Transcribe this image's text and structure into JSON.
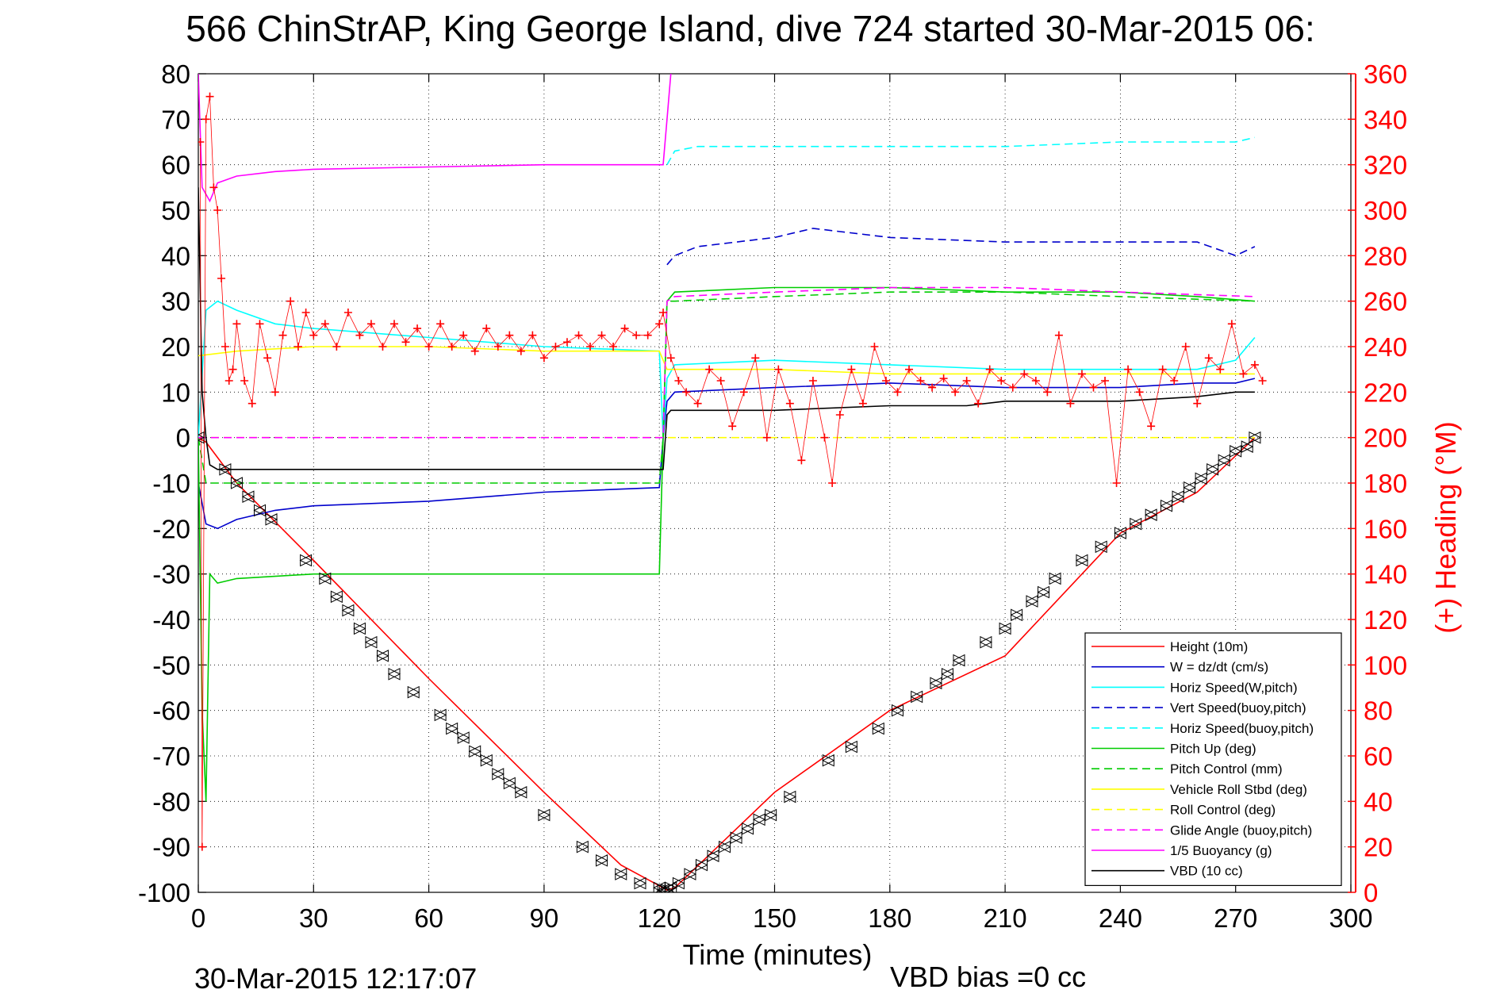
{
  "chart_data": {
    "type": "line",
    "title": "566 ChinStrAP, King George Island, dive 724 started 30-Mar-2015 06:",
    "xlabel": "Time (minutes)",
    "ylabel": "",
    "y2label": "(+) Heading (°M)",
    "xlim": [
      0,
      300
    ],
    "ylim": [
      -100,
      80
    ],
    "y2lim": [
      0,
      360
    ],
    "xticks": [
      0,
      30,
      60,
      90,
      120,
      150,
      180,
      210,
      240,
      270,
      300
    ],
    "yticks": [
      80,
      70,
      60,
      50,
      40,
      30,
      20,
      10,
      0,
      -10,
      -20,
      -30,
      -40,
      -50,
      -60,
      -70,
      -80,
      -90,
      -100
    ],
    "y2ticks": [
      360,
      340,
      320,
      300,
      280,
      260,
      240,
      220,
      200,
      180,
      160,
      140,
      120,
      100,
      80,
      60,
      40,
      20,
      0
    ],
    "grid": true,
    "legend_position": "lower-right",
    "footer_left": "30-Mar-2015 12:17:07",
    "footer_right": "VBD bias =0 cc",
    "colors": {
      "red": "#ff0000",
      "blue": "#0000cc",
      "cyan": "#00ffff",
      "green": "#00cc00",
      "yellow": "#ffff00",
      "magenta": "#ff00ff",
      "black": "#000000"
    },
    "series": [
      {
        "name": "Height (10m)",
        "color": "#ff0000",
        "dash": "solid",
        "x": [
          0,
          2,
          10,
          30,
          60,
          90,
          110,
          121,
          122,
          124,
          150,
          180,
          210,
          240,
          260,
          275
        ],
        "y": [
          0,
          -1,
          -10,
          -27,
          -53,
          -78,
          -94,
          -99,
          -99.5,
          -99,
          -78,
          -60,
          -48,
          -21,
          -12,
          0
        ]
      },
      {
        "name": "W = dz/dt (cm/s)",
        "color": "#0000cc",
        "dash": "solid",
        "x": [
          0,
          2,
          5,
          10,
          20,
          30,
          60,
          90,
          120,
          121,
          122,
          124,
          150,
          180,
          210,
          240,
          260,
          270,
          275
        ],
        "y": [
          -10,
          -19,
          -20,
          -18,
          -16,
          -15,
          -14,
          -12,
          -11,
          0,
          8,
          10,
          11,
          12,
          11,
          11,
          12,
          12,
          13
        ]
      },
      {
        "name": "Horiz Speed(W,pitch)",
        "color": "#00ffff",
        "dash": "solid",
        "x": [
          0,
          2,
          5,
          10,
          20,
          30,
          60,
          90,
          120,
          121,
          122,
          124,
          150,
          180,
          210,
          240,
          260,
          270,
          275
        ],
        "y": [
          0,
          28,
          30,
          28,
          25,
          24,
          22,
          20,
          19,
          0,
          13,
          16,
          17,
          16,
          15,
          15,
          15,
          17,
          22
        ]
      },
      {
        "name": "Vert Speed(buoy,pitch)",
        "color": "#0000cc",
        "dash": "dashed",
        "x": [
          122,
          124,
          130,
          150,
          160,
          180,
          210,
          240,
          260,
          270,
          275
        ],
        "y": [
          38,
          40,
          42,
          44,
          46,
          44,
          43,
          43,
          43,
          40,
          42
        ]
      },
      {
        "name": "Horiz Speed(buoy,pitch)",
        "color": "#00ffff",
        "dash": "dashed",
        "x": [
          122,
          124,
          130,
          150,
          180,
          210,
          240,
          260,
          270,
          275
        ],
        "y": [
          60,
          63,
          64,
          64,
          64,
          64,
          65,
          65,
          65,
          66
        ]
      },
      {
        "name": "Pitch Up (deg)",
        "color": "#00cc00",
        "dash": "solid",
        "x": [
          0,
          1,
          2,
          3,
          5,
          10,
          30,
          60,
          90,
          120,
          121,
          122,
          124,
          150,
          180,
          210,
          240,
          260,
          275
        ],
        "y": [
          0,
          -60,
          -80,
          -30,
          -32,
          -31,
          -30,
          -30,
          -30,
          -30,
          0,
          30,
          32,
          33,
          33,
          32,
          32,
          31,
          30
        ]
      },
      {
        "name": "Pitch Control (mm)",
        "color": "#00cc00",
        "dash": "dashed",
        "x": [
          0,
          2,
          5,
          60,
          120,
          121,
          122,
          124,
          150,
          180,
          210,
          240,
          275
        ],
        "y": [
          0,
          -10,
          -10,
          -10,
          -10,
          0,
          30,
          30,
          31,
          32,
          32,
          31,
          30
        ]
      },
      {
        "name": "Vehicle Roll Stbd (deg)",
        "color": "#ffff00",
        "dash": "solid",
        "x": [
          0,
          10,
          30,
          60,
          90,
          120,
          122,
          150,
          180,
          210,
          240,
          275
        ],
        "y": [
          18,
          19,
          20,
          20,
          19,
          19,
          15,
          15,
          14,
          14,
          14,
          14
        ]
      },
      {
        "name": "Roll Control (deg)",
        "color": "#ffff00",
        "dash": "dashed",
        "x": [
          0,
          10,
          30,
          60,
          90,
          120,
          122,
          150,
          180,
          210,
          240,
          275
        ],
        "y": [
          0,
          0,
          0,
          0,
          0,
          0,
          0,
          0,
          0,
          0,
          0,
          0
        ]
      },
      {
        "name": "Glide Angle (buoy,pitch)",
        "color": "#ff00ff",
        "dash": "dashed",
        "x": [
          0,
          2,
          60,
          120,
          121,
          122,
          124,
          150,
          180,
          210,
          240,
          275
        ],
        "y": [
          0,
          0,
          0,
          0,
          0,
          30,
          31,
          32,
          33,
          33,
          32,
          31
        ]
      },
      {
        "name": "1/5 Buoyancy (g)",
        "color": "#ff00ff",
        "dash": "solid",
        "x": [
          0,
          1,
          3,
          5,
          10,
          20,
          30,
          60,
          90,
          120,
          121,
          122,
          123
        ],
        "y": [
          80,
          55,
          52,
          56,
          57.5,
          58.5,
          59,
          59.5,
          60,
          60,
          60,
          70,
          80
        ]
      },
      {
        "name": "VBD (10 cc)",
        "color": "#000000",
        "dash": "solid",
        "x": [
          0,
          1,
          2,
          3,
          5,
          60,
          120,
          121,
          122,
          123,
          150,
          180,
          200,
          210,
          240,
          260,
          270,
          275
        ],
        "y": [
          55,
          10,
          0,
          -6,
          -7,
          -7,
          -7,
          -7,
          5,
          6,
          6,
          7,
          7,
          8,
          8,
          9,
          10,
          10
        ]
      }
    ],
    "heading_series": {
      "name": "(+) Heading",
      "color": "#ff0000",
      "x": [
        0.5,
        1,
        2,
        3,
        4,
        5,
        6,
        7,
        8,
        9,
        10,
        12,
        14,
        16,
        18,
        20,
        22,
        24,
        26,
        28,
        30,
        33,
        36,
        39,
        42,
        45,
        48,
        51,
        54,
        57,
        60,
        63,
        66,
        69,
        72,
        75,
        78,
        81,
        84,
        87,
        90,
        93,
        96,
        99,
        102,
        105,
        108,
        111,
        114,
        117,
        120,
        121,
        123,
        125,
        127,
        130,
        133,
        136,
        139,
        142,
        145,
        148,
        151,
        154,
        157,
        160,
        163,
        165,
        167,
        170,
        173,
        176,
        179,
        182,
        185,
        188,
        191,
        194,
        197,
        200,
        203,
        206,
        209,
        212,
        215,
        218,
        221,
        224,
        227,
        230,
        233,
        236,
        239,
        242,
        245,
        248,
        251,
        254,
        257,
        260,
        263,
        266,
        269,
        272,
        275,
        277
      ],
      "y": [
        330,
        20,
        340,
        350,
        310,
        300,
        270,
        240,
        225,
        230,
        250,
        225,
        215,
        250,
        235,
        220,
        245,
        260,
        240,
        255,
        245,
        250,
        240,
        255,
        245,
        250,
        240,
        250,
        242,
        248,
        240,
        250,
        240,
        245,
        238,
        248,
        240,
        245,
        238,
        245,
        235,
        240,
        242,
        245,
        240,
        245,
        240,
        248,
        245,
        245,
        250,
        255,
        235,
        225,
        220,
        215,
        230,
        225,
        205,
        220,
        235,
        200,
        230,
        215,
        190,
        225,
        200,
        180,
        210,
        230,
        215,
        240,
        225,
        220,
        230,
        225,
        222,
        226,
        220,
        225,
        215,
        230,
        225,
        222,
        228,
        225,
        220,
        245,
        215,
        228,
        222,
        225,
        180,
        230,
        220,
        205,
        230,
        225,
        240,
        215,
        235,
        230,
        250,
        228,
        232,
        225
      ]
    },
    "markers_series": {
      "name": "",
      "color": "#000000",
      "x": [
        0,
        7,
        10,
        13,
        16,
        19,
        28,
        33,
        36,
        39,
        42,
        45,
        48,
        51,
        56,
        63,
        66,
        69,
        72,
        75,
        78,
        81,
        84,
        90,
        100,
        105,
        110,
        115,
        120,
        121,
        122,
        123,
        125,
        128,
        131,
        134,
        137,
        140,
        143,
        146,
        149,
        154,
        164,
        170,
        177,
        182,
        187,
        192,
        195,
        198,
        205,
        210,
        213,
        217,
        220,
        223,
        230,
        235,
        240,
        244,
        248,
        252,
        255,
        258,
        261,
        264,
        267,
        270,
        273,
        275
      ],
      "y": [
        0,
        -7,
        -10,
        -13,
        -16,
        -18,
        -27,
        -31,
        -35,
        -38,
        -42,
        -45,
        -48,
        -52,
        -56,
        -61,
        -64,
        -66,
        -69,
        -71,
        -74,
        -76,
        -78,
        -83,
        -90,
        -93,
        -96,
        -98,
        -99,
        -99.5,
        -99.5,
        -99,
        -98,
        -96,
        -94,
        -92,
        -90,
        -88,
        -86,
        -84,
        -83,
        -79,
        -71,
        -68,
        -64,
        -60,
        -57,
        -54,
        -52,
        -49,
        -45,
        -42,
        -39,
        -36,
        -34,
        -31,
        -27,
        -24,
        -21,
        -19,
        -17,
        -15,
        -13,
        -11,
        -9,
        -7,
        -5,
        -3,
        -2,
        0
      ]
    }
  }
}
